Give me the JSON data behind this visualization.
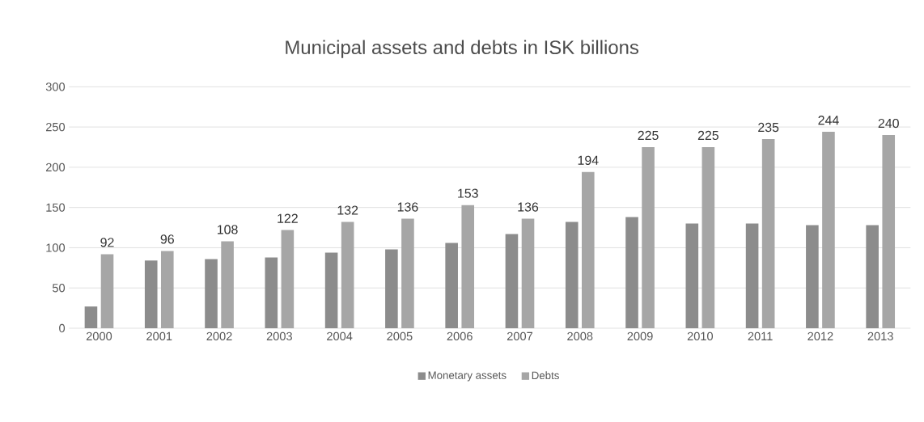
{
  "chart_data": {
    "type": "bar",
    "title": "Municipal assets and debts in ISK billions",
    "categories": [
      "2000",
      "2001",
      "2002",
      "2003",
      "2004",
      "2005",
      "2006",
      "2007",
      "2008",
      "2009",
      "2010",
      "2011",
      "2012",
      "2013"
    ],
    "series": [
      {
        "name": "Monetary assets",
        "color": "#8c8c8c",
        "values": [
          27,
          84,
          86,
          88,
          94,
          98,
          106,
          117,
          132,
          138,
          130,
          130,
          128,
          128
        ]
      },
      {
        "name": "Debts",
        "color": "#a6a6a6",
        "values": [
          92,
          96,
          108,
          122,
          132,
          136,
          153,
          136,
          194,
          225,
          225,
          235,
          244,
          240
        ],
        "value_labels": [
          "92",
          "96",
          "108",
          "122",
          "132",
          "136",
          "153",
          "136",
          "194",
          "225",
          "225",
          "235",
          "244",
          "240"
        ]
      }
    ],
    "ylim": [
      0,
      300
    ],
    "yticks": [
      0,
      50,
      100,
      150,
      200,
      250,
      300
    ],
    "grid": "y",
    "legend": "bottom"
  }
}
